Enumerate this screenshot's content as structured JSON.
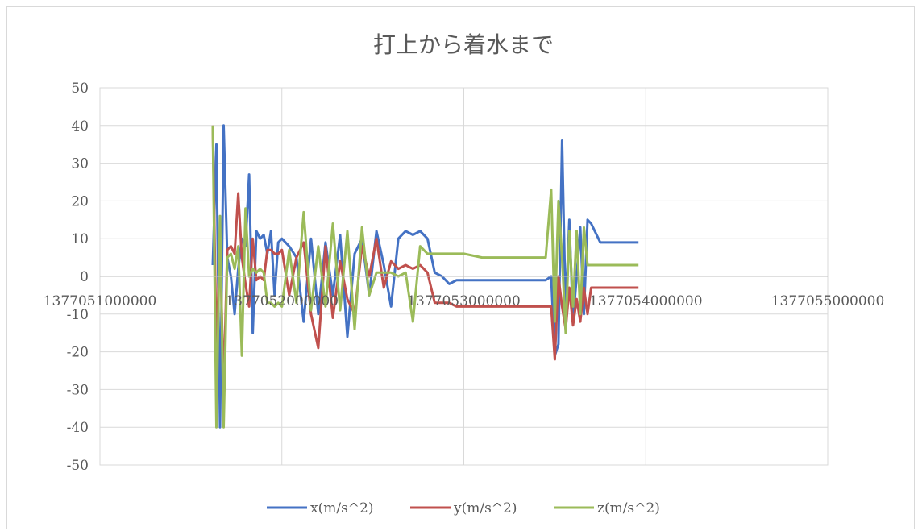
{
  "chart_data": {
    "type": "line",
    "title": "打上から着水まで",
    "xlabel": "",
    "ylabel": "",
    "xlim": [
      1377051000000,
      1377055000000
    ],
    "ylim": [
      -50,
      50
    ],
    "x_ticks": [
      1377051000000,
      1377052000000,
      1377053000000,
      1377054000000,
      1377055000000
    ],
    "x_tick_labels": [
      "1377051000000",
      "1377052000000",
      "1377053000000",
      "1377054000000",
      "1377055000000"
    ],
    "y_ticks": [
      50,
      40,
      30,
      20,
      10,
      0,
      -10,
      -20,
      -30,
      -40,
      -50
    ],
    "y_tick_labels": [
      "50",
      "40",
      "30",
      "20",
      "10",
      "0",
      "-10",
      "-20",
      "-30",
      "-40",
      "-50"
    ],
    "grid": true,
    "legend_position": "bottom",
    "series": [
      {
        "name": "x(m/s^2)",
        "color": "#4472c4",
        "x": [
          1377051620000,
          1377051640000,
          1377051660000,
          1377051680000,
          1377051700000,
          1377051720000,
          1377051740000,
          1377051760000,
          1377051780000,
          1377051800000,
          1377051820000,
          1377051840000,
          1377051860000,
          1377051880000,
          1377051900000,
          1377051920000,
          1377051940000,
          1377051960000,
          1377051980000,
          1377052000000,
          1377052040000,
          1377052080000,
          1377052120000,
          1377052160000,
          1377052200000,
          1377052240000,
          1377052280000,
          1377052320000,
          1377052360000,
          1377052400000,
          1377052440000,
          1377052480000,
          1377052520000,
          1377052560000,
          1377052600000,
          1377052640000,
          1377052680000,
          1377052720000,
          1377052760000,
          1377052800000,
          1377052840000,
          1377052880000,
          1377052920000,
          1377052960000,
          1377053000000,
          1377053100000,
          1377053200000,
          1377053300000,
          1377053380000,
          1377053420000,
          1377053450000,
          1377053480000,
          1377053500000,
          1377053520000,
          1377053540000,
          1377053560000,
          1377053580000,
          1377053600000,
          1377053620000,
          1377053640000,
          1377053660000,
          1377053680000,
          1377053700000,
          1377053750000,
          1377053800000,
          1377053850000,
          1377053900000,
          1377053960000
        ],
        "values": [
          3,
          35,
          -40,
          40,
          5,
          0,
          -10,
          2,
          10,
          8,
          27,
          -15,
          12,
          10,
          11,
          6,
          12,
          -5,
          9,
          10,
          8,
          5,
          -12,
          10,
          -10,
          9,
          -5,
          11,
          -16,
          6,
          10,
          -5,
          12,
          3,
          -8,
          10,
          12,
          11,
          12,
          10,
          1,
          0,
          -2,
          -1,
          -1,
          -1,
          -1,
          -1,
          -1,
          -1,
          -1,
          0,
          -21,
          -18,
          36,
          -10,
          15,
          -12,
          0,
          13,
          -10,
          15,
          14,
          9,
          9,
          9,
          9,
          9
        ]
      },
      {
        "name": "y(m/s^2)",
        "color": "#c0504d",
        "x": [
          1377051620000,
          1377051640000,
          1377051660000,
          1377051680000,
          1377051700000,
          1377051720000,
          1377051740000,
          1377051760000,
          1377051780000,
          1377051800000,
          1377051820000,
          1377051840000,
          1377051860000,
          1377051880000,
          1377051900000,
          1377051920000,
          1377051940000,
          1377051960000,
          1377051980000,
          1377052000000,
          1377052040000,
          1377052080000,
          1377052120000,
          1377052160000,
          1377052200000,
          1377052240000,
          1377052280000,
          1377052320000,
          1377052360000,
          1377052400000,
          1377052440000,
          1377052480000,
          1377052520000,
          1377052560000,
          1377052600000,
          1377052640000,
          1377052680000,
          1377052720000,
          1377052760000,
          1377052800000,
          1377052840000,
          1377052880000,
          1377052920000,
          1377052960000,
          1377053000000,
          1377053100000,
          1377053200000,
          1377053300000,
          1377053380000,
          1377053420000,
          1377053450000,
          1377053480000,
          1377053500000,
          1377053520000,
          1377053540000,
          1377053560000,
          1377053580000,
          1377053600000,
          1377053620000,
          1377053640000,
          1377053660000,
          1377053680000,
          1377053700000,
          1377053750000,
          1377053800000,
          1377053850000,
          1377053900000,
          1377053960000
        ],
        "values": [
          40,
          -20,
          10,
          -30,
          7,
          8,
          6,
          22,
          5,
          -2,
          -8,
          10,
          -1,
          0,
          -1,
          7,
          7,
          6,
          6,
          7,
          -5,
          5,
          9,
          -10,
          -19,
          8,
          -11,
          4,
          -6,
          -10,
          8,
          0,
          10,
          -3,
          4,
          2,
          3,
          2,
          3,
          1,
          -7,
          -7,
          -7,
          -8,
          -8,
          -8,
          -8,
          -8,
          -8,
          -8,
          -8,
          -8,
          -22,
          0,
          -8,
          -14,
          -3,
          -13,
          -6,
          -12,
          -3,
          -10,
          -3,
          -3,
          -3,
          -3,
          -3,
          -3
        ]
      },
      {
        "name": "z(m/s^2)",
        "color": "#9bbb59",
        "x": [
          1377051620000,
          1377051640000,
          1377051660000,
          1377051680000,
          1377051700000,
          1377051720000,
          1377051740000,
          1377051760000,
          1377051780000,
          1377051800000,
          1377051820000,
          1377051840000,
          1377051860000,
          1377051880000,
          1377051900000,
          1377051920000,
          1377051940000,
          1377051960000,
          1377051980000,
          1377052000000,
          1377052040000,
          1377052080000,
          1377052120000,
          1377052160000,
          1377052200000,
          1377052240000,
          1377052280000,
          1377052320000,
          1377052360000,
          1377052400000,
          1377052440000,
          1377052480000,
          1377052520000,
          1377052560000,
          1377052600000,
          1377052640000,
          1377052680000,
          1377052720000,
          1377052760000,
          1377052800000,
          1377052840000,
          1377052880000,
          1377052920000,
          1377052960000,
          1377053000000,
          1377053100000,
          1377053200000,
          1377053300000,
          1377053380000,
          1377053420000,
          1377053450000,
          1377053480000,
          1377053500000,
          1377053520000,
          1377053540000,
          1377053560000,
          1377053580000,
          1377053600000,
          1377053620000,
          1377053640000,
          1377053660000,
          1377053680000,
          1377053700000,
          1377053750000,
          1377053800000,
          1377053850000,
          1377053900000,
          1377053960000
        ],
        "values": [
          40,
          -40,
          16,
          -40,
          5,
          6,
          2,
          8,
          -21,
          18,
          0,
          2,
          1,
          2,
          1,
          -7,
          -7,
          -8,
          -7,
          -8,
          7,
          -7,
          17,
          -9,
          8,
          -8,
          14,
          -9,
          12,
          -14,
          13,
          -5,
          1,
          1,
          1,
          0,
          1,
          -12,
          8,
          6,
          6,
          6,
          6,
          6,
          6,
          5,
          5,
          5,
          5,
          5,
          5,
          23,
          -12,
          20,
          5,
          -15,
          12,
          -8,
          12,
          -10,
          13,
          3,
          3,
          3,
          3,
          3,
          3,
          3
        ]
      }
    ]
  }
}
